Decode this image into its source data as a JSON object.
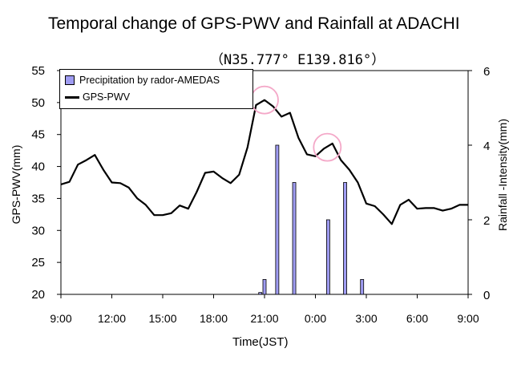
{
  "chart_data": {
    "type": "bar+line",
    "title": "Temporal change of  GPS-PWV and Rainfall at ADACHI",
    "subtitle": "（N35.777°  E139.816°）",
    "xlabel": "Time(JST)",
    "ylabel_left": "GPS-PWV(mm)",
    "ylabel_right": "Rainfall -Intensity(mm)",
    "x_ticks": [
      "9:00",
      "12:00",
      "15:00",
      "18:00",
      "21:00",
      "0:00",
      "3:00",
      "6:00",
      "9:00"
    ],
    "x_range_hours": [
      0,
      24
    ],
    "ylim_left": [
      20,
      55
    ],
    "yticks_left": [
      20,
      25,
      30,
      35,
      40,
      45,
      50,
      55
    ],
    "ylim_right": [
      0,
      6
    ],
    "yticks_right": [
      0,
      2,
      4,
      6
    ],
    "grid": false,
    "legend_position": "top-left",
    "legend": [
      {
        "name": "Precipitation by rador-AMEDAS",
        "kind": "bar",
        "color": "#9f9cf2"
      },
      {
        "name": "GPS-PWV",
        "kind": "line",
        "color": "#000000"
      }
    ],
    "series": [
      {
        "name": "GPS-PWV",
        "axis": "left",
        "x_hours": [
          0,
          0.5,
          1,
          1.5,
          2,
          2.5,
          3,
          3.5,
          4,
          4.5,
          5,
          5.5,
          6,
          6.5,
          7,
          7.5,
          8,
          8.5,
          9,
          9.5,
          10,
          10.5,
          11,
          11.5,
          12,
          12.5,
          13,
          13.5,
          14,
          14.5,
          15,
          15.5,
          16,
          16.5,
          17,
          17.5,
          18,
          18.5,
          19,
          19.5,
          20,
          20.5,
          21,
          21.5,
          22,
          22.5,
          23,
          23.5,
          24
        ],
        "values": [
          37.2,
          37.6,
          40.3,
          41.0,
          41.8,
          39.5,
          37.5,
          37.4,
          36.7,
          35.0,
          34.0,
          32.4,
          32.4,
          32.7,
          33.9,
          33.4,
          36.0,
          39.0,
          39.2,
          38.2,
          37.4,
          38.7,
          43.0,
          49.6,
          50.4,
          49.4,
          47.8,
          48.4,
          44.5,
          41.9,
          41.6,
          42.8,
          43.6,
          41.0,
          39.5,
          37.5,
          34.2,
          33.8,
          32.5,
          31.0,
          34.0,
          34.8,
          33.4,
          33.5,
          33.5,
          33.1,
          33.4,
          34.0,
          34.0
        ]
      },
      {
        "name": "Precipitation by rador-AMEDAS",
        "axis": "right",
        "x_hours": [
          11.75,
          12.0,
          12.75,
          13.75,
          15.75,
          16.75,
          17.75
        ],
        "values": [
          0.05,
          0.4,
          4.0,
          3.0,
          2.0,
          3.0,
          0.4
        ]
      }
    ],
    "annotations": [
      {
        "type": "circle",
        "color": "#f4a8c8",
        "at_hours": 12.0,
        "at_value": 50.4
      },
      {
        "type": "circle",
        "color": "#f4a8c8",
        "at_hours": 15.7,
        "at_value": 43.0
      }
    ]
  }
}
